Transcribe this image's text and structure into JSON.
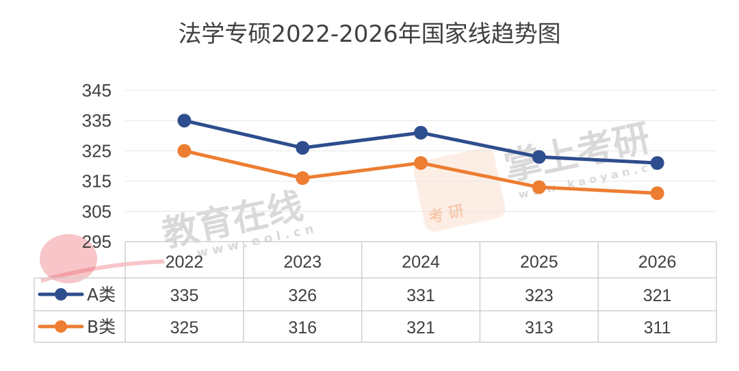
{
  "chart_data": {
    "type": "line",
    "title": "法学专硕2022-2026年国家线趋势图",
    "categories": [
      "2022",
      "2023",
      "2024",
      "2025",
      "2026"
    ],
    "series": [
      {
        "name": "A类",
        "values": [
          335,
          326,
          331,
          323,
          321
        ],
        "color": "#2E4D8E"
      },
      {
        "name": "B类",
        "values": [
          325,
          316,
          321,
          313,
          311
        ],
        "color": "#ED7D31"
      }
    ],
    "yticks": [
      345,
      335,
      325,
      315,
      305,
      295
    ],
    "ylim": [
      295,
      345
    ],
    "grid": true,
    "legend": "data-table-left",
    "xlabel": "",
    "ylabel": ""
  },
  "watermarks": {
    "eol_name": "教育在线",
    "eol_url": "w w w . e o l . c n",
    "kaoyan_name": "掌上考研",
    "kaoyan_url": "w w w . k a o y a n . c n",
    "kaoyan_badge": "考 研"
  }
}
